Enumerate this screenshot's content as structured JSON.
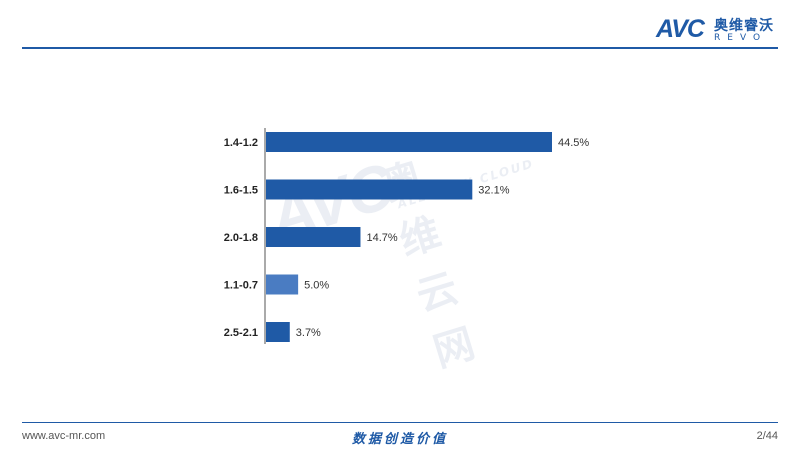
{
  "header": {
    "logo_brand": "AVC",
    "logo_cn": "奥维睿沃",
    "logo_en": "REVO"
  },
  "watermark": {
    "brand": "AVC",
    "cn": "奥维云网",
    "en": "ALL VIEW CLOUD"
  },
  "footer": {
    "website": "www.avc-mr.com",
    "slogan": "数据创造价值",
    "page": "2/44"
  },
  "colors": {
    "accent": "#1f5aa6",
    "bar": "#1f5aa6",
    "bar_highlight": "#4a7cc2"
  },
  "chart_data": {
    "type": "bar",
    "orientation": "horizontal",
    "categories": [
      "1.4-1.2",
      "1.6-1.5",
      "2.0-1.8",
      "1.1-0.7",
      "2.5-2.1"
    ],
    "values": [
      44.5,
      32.1,
      14.7,
      5.0,
      3.7
    ],
    "value_labels": [
      "44.5%",
      "32.1%",
      "14.7%",
      "5.0%",
      "3.7%"
    ],
    "xlim": [
      0,
      44.5
    ],
    "grid": false,
    "legend": "none"
  }
}
